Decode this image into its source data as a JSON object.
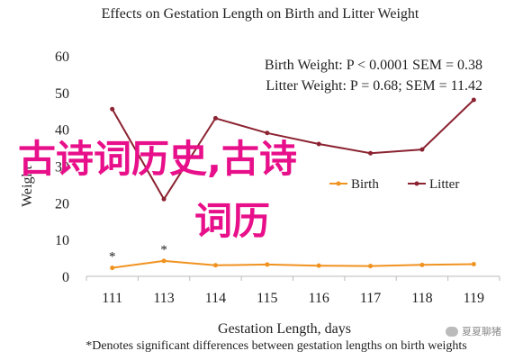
{
  "chart_data": {
    "type": "line",
    "title": "Effects on Gestation Length on Birth and Litter Weight",
    "xlabel": "Gestation Length, days",
    "ylabel": "Weight",
    "categories": [
      "111",
      "113",
      "114",
      "115",
      "116",
      "117",
      "118",
      "119"
    ],
    "ylim": [
      0,
      60
    ],
    "yticks": [
      "0",
      "10",
      "20",
      "30",
      "40",
      "50",
      "60"
    ],
    "series": [
      {
        "name": "Birth",
        "color": "#f0921f",
        "values": [
          2.3,
          4.2,
          3.0,
          3.2,
          2.9,
          2.8,
          3.1,
          3.3
        ]
      },
      {
        "name": "Litter",
        "color": "#8b2331",
        "values": [
          45.5,
          21,
          43,
          39,
          36,
          33.5,
          34.5,
          48
        ]
      }
    ],
    "stats": [
      "Birth Weight: P < 0.0001 SEM = 0.38",
      "Litter Weight: P = 0.68; SEM = 11.42"
    ],
    "significance": {
      "marker": "*",
      "categories": [
        "111",
        "113"
      ]
    },
    "footnote": "*Denotes significant differences between gestation lengths on birth weights",
    "legend_position": "lower-right"
  },
  "overlay": {
    "line1": "古诗词历史,古诗",
    "line2": "词历"
  },
  "watermark": "夏夏聊猪"
}
